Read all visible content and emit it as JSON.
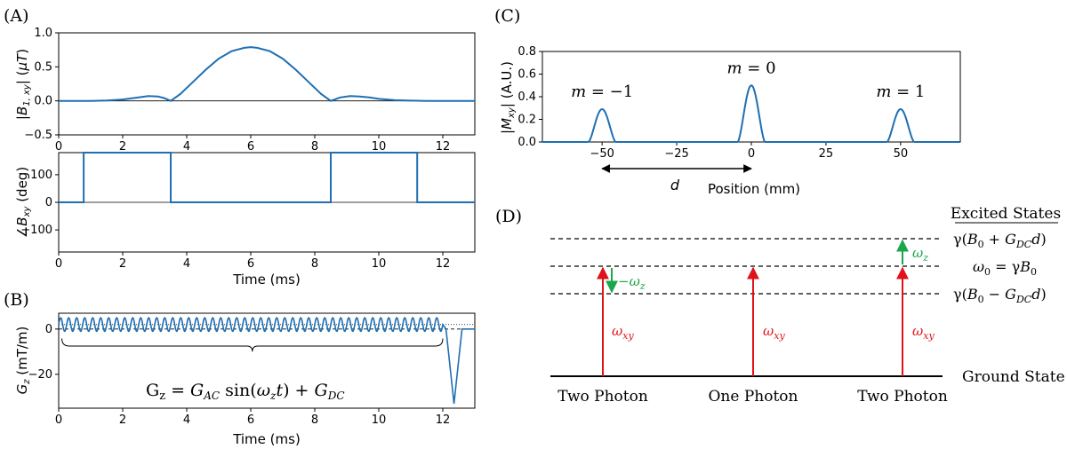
{
  "colors": {
    "line": "#1f6fb2",
    "red": "#e0131b",
    "green": "#1aa64a",
    "black": "#000000"
  },
  "panel_labels": {
    "a": "(A)",
    "b": "(B)",
    "c": "(C)",
    "d": "(D)"
  },
  "chart_data": [
    {
      "id": "A-top",
      "type": "line",
      "ylabel": "|B1,xy| (μT)",
      "ylabel_parts": {
        "pre": "|",
        "sym": "B",
        "sub": "1, xy",
        "post": "| (",
        "unit": "μT",
        "end": ")"
      },
      "xlim": [
        0,
        13
      ],
      "ylim": [
        -0.5,
        1.0
      ],
      "xticks": [
        0,
        2,
        4,
        6,
        8,
        10,
        12
      ],
      "yticks": [
        -0.5,
        0.0,
        0.5,
        1.0
      ],
      "ytick_labels": [
        "−0.5",
        "0.0",
        "0.5",
        "1.0"
      ],
      "zero_line": true,
      "series": [
        {
          "name": "|B1,xy|",
          "x": [
            0,
            1,
            1.5,
            2,
            2.5,
            2.8,
            3.1,
            3.3,
            3.5,
            3.8,
            4.2,
            4.6,
            5.0,
            5.4,
            5.8,
            6.0,
            6.2,
            6.6,
            7.0,
            7.4,
            7.8,
            8.2,
            8.5,
            8.8,
            9.1,
            9.4,
            9.7,
            10,
            10.5,
            11,
            11.5,
            12,
            13
          ],
          "y": [
            0,
            0,
            0.005,
            0.02,
            0.05,
            0.07,
            0.065,
            0.04,
            0.0,
            0.1,
            0.28,
            0.46,
            0.62,
            0.73,
            0.78,
            0.79,
            0.78,
            0.73,
            0.62,
            0.46,
            0.28,
            0.1,
            0.0,
            0.05,
            0.07,
            0.065,
            0.05,
            0.03,
            0.01,
            0.003,
            0,
            0,
            0
          ]
        }
      ]
    },
    {
      "id": "A-bottom",
      "type": "line",
      "xlabel": "Time (ms)",
      "ylabel": "∠Bxy (deg)",
      "ylabel_parts": {
        "pre": "∠",
        "sym": "B",
        "sub": "xy",
        "post": " (deg)"
      },
      "xlim": [
        0,
        13
      ],
      "ylim": [
        -180,
        180
      ],
      "xticks": [
        0,
        2,
        4,
        6,
        8,
        10,
        12
      ],
      "yticks": [
        -100,
        0,
        100
      ],
      "ytick_labels": [
        "−100",
        "0",
        "100"
      ],
      "zero_line": true,
      "series": [
        {
          "name": "phase",
          "x": [
            0,
            0.78,
            0.78,
            3.5,
            3.5,
            8.5,
            8.5,
            11.2,
            11.2,
            13
          ],
          "y": [
            0,
            0,
            180,
            180,
            0,
            0,
            180,
            180,
            0,
            0
          ]
        }
      ]
    },
    {
      "id": "B",
      "type": "line",
      "xlabel": "Time (ms)",
      "ylabel": "Gz (mT/m)",
      "ylabel_parts": {
        "sym": "G",
        "sub": "z",
        "post": " (mT/m)"
      },
      "xlim": [
        0,
        13
      ],
      "ylim": [
        -35,
        7
      ],
      "xticks": [
        0,
        2,
        4,
        6,
        8,
        10,
        12
      ],
      "yticks": [
        -20,
        0
      ],
      "ytick_labels": [
        "−20",
        "0"
      ],
      "dashed_ref_y": 0,
      "dotted_ref_y": 2,
      "oscillation": {
        "amplitude_mT_per_m": 3,
        "offset_mT_per_m": 2,
        "cycles": 48,
        "t_start_ms": 0,
        "t_end_ms": 12
      },
      "refocus_lobe": {
        "t_start_ms": 12.1,
        "t_min_ms": 12.35,
        "min_mT_per_m": -33,
        "t_end_ms": 12.6
      },
      "brace": {
        "t_start_ms": 0.1,
        "t_end_ms": 12.0
      },
      "equation": "Gz = GAC sin(ωzt) + GDC"
    },
    {
      "id": "C",
      "type": "line",
      "xlabel": "Position (mm)",
      "ylabel": "|Mxy| (A.U.)",
      "ylabel_parts": {
        "pre": "|",
        "sym": "M",
        "sub": "xy",
        "post": "| (A.U.)"
      },
      "xlim": [
        -70,
        70
      ],
      "ylim": [
        0,
        0.8
      ],
      "xticks": [
        -50,
        -25,
        0,
        25,
        50
      ],
      "xtick_labels": [
        "−50",
        "−25",
        "0",
        "25",
        "50"
      ],
      "yticks": [
        0.0,
        0.2,
        0.4,
        0.6,
        0.8
      ],
      "ytick_labels": [
        "0.0",
        "0.2",
        "0.4",
        "0.6",
        "0.8"
      ],
      "peaks": [
        {
          "center_mm": -50,
          "height": 0.29,
          "label": "m = −1",
          "label_parts": {
            "sym": "m",
            "rest": " = −1"
          }
        },
        {
          "center_mm": 0,
          "height": 0.5,
          "label": "m = 0",
          "label_parts": {
            "sym": "m",
            "rest": " = 0"
          }
        },
        {
          "center_mm": 50,
          "height": 0.29,
          "label": "m = 1",
          "label_parts": {
            "sym": "m",
            "rest": " = 1"
          }
        }
      ],
      "distance_label": "d"
    }
  ],
  "diagram_d": {
    "excited_states_heading": "Excited States",
    "ground_state_label": "Ground State",
    "levels": [
      {
        "name": "upper",
        "label": "γ(B0 + GDC d)"
      },
      {
        "name": "center",
        "label": "ω0 = γB0"
      },
      {
        "name": "lower",
        "label": "γ(B0 − GDC d)"
      }
    ],
    "transitions": [
      {
        "label": "Two Photon",
        "omega_xy": "ωxy",
        "shift": "−ωz"
      },
      {
        "label": "One Photon",
        "omega_xy": "ωxy"
      },
      {
        "label": "Two Photon",
        "omega_xy": "ωxy",
        "shift": "ωz"
      }
    ]
  }
}
